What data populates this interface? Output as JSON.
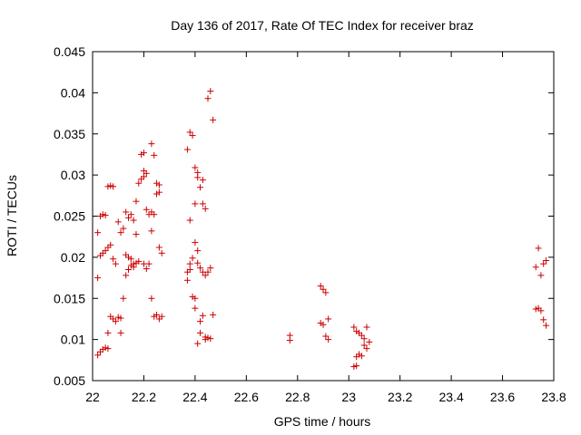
{
  "chart_data": {
    "type": "scatter",
    "title": "Day 136 of 2017, Rate Of TEC Index for receiver braz",
    "xlabel": "GPS time / hours",
    "ylabel": "ROTI / TECUs",
    "xlim": [
      22,
      23.8
    ],
    "ylim": [
      0.005,
      0.045
    ],
    "x_ticks": [
      22,
      22.2,
      22.4,
      22.6,
      22.8,
      23,
      23.2,
      23.4,
      23.6,
      23.8
    ],
    "x_tick_labels": [
      "22",
      "22.2",
      "22.4",
      "22.6",
      "22.8",
      "23",
      "23.2",
      "23.4",
      "23.6",
      "23.8"
    ],
    "y_ticks": [
      0.005,
      0.01,
      0.015,
      0.02,
      0.025,
      0.03,
      0.035,
      0.04,
      0.045
    ],
    "y_tick_labels": [
      "0.005",
      "0.01",
      "0.015",
      "0.02",
      "0.025",
      "0.03",
      "0.035",
      "0.04",
      "0.045"
    ],
    "grid": false,
    "marker": "plus",
    "color": "#cc0000",
    "points": [
      [
        22.02,
        0.0081
      ],
      [
        22.03,
        0.0085
      ],
      [
        22.04,
        0.0088
      ],
      [
        22.05,
        0.009
      ],
      [
        22.06,
        0.0089
      ],
      [
        22.02,
        0.0175
      ],
      [
        22.02,
        0.023
      ],
      [
        22.03,
        0.0202
      ],
      [
        22.04,
        0.0205
      ],
      [
        22.05,
        0.0208
      ],
      [
        22.03,
        0.025
      ],
      [
        22.04,
        0.0252
      ],
      [
        22.05,
        0.0251
      ],
      [
        22.06,
        0.0212
      ],
      [
        22.07,
        0.0215
      ],
      [
        22.06,
        0.0286
      ],
      [
        22.07,
        0.0287
      ],
      [
        22.08,
        0.0286
      ],
      [
        22.08,
        0.0198
      ],
      [
        22.09,
        0.0192
      ],
      [
        22.07,
        0.0128
      ],
      [
        22.08,
        0.0125
      ],
      [
        22.09,
        0.0122
      ],
      [
        22.1,
        0.0127
      ],
      [
        22.11,
        0.0126
      ],
      [
        22.06,
        0.0108
      ],
      [
        22.11,
        0.0108
      ],
      [
        22.1,
        0.0243
      ],
      [
        22.11,
        0.023
      ],
      [
        22.12,
        0.0235
      ],
      [
        22.13,
        0.0255
      ],
      [
        22.14,
        0.0248
      ],
      [
        22.15,
        0.0252
      ],
      [
        22.16,
        0.0245
      ],
      [
        22.17,
        0.0228
      ],
      [
        22.12,
        0.015
      ],
      [
        22.13,
        0.0178
      ],
      [
        22.14,
        0.0185
      ],
      [
        22.15,
        0.019
      ],
      [
        22.16,
        0.0188
      ],
      [
        22.13,
        0.0203
      ],
      [
        22.14,
        0.02
      ],
      [
        22.15,
        0.0198
      ],
      [
        22.17,
        0.0193
      ],
      [
        22.18,
        0.0195
      ],
      [
        22.17,
        0.0268
      ],
      [
        22.18,
        0.029
      ],
      [
        22.19,
        0.0295
      ],
      [
        22.2,
        0.0298
      ],
      [
        22.21,
        0.0302
      ],
      [
        22.19,
        0.0325
      ],
      [
        22.2,
        0.0327
      ],
      [
        22.2,
        0.0305
      ],
      [
        22.21,
        0.0258
      ],
      [
        22.22,
        0.0252
      ],
      [
        22.21,
        0.0186
      ],
      [
        22.22,
        0.0192
      ],
      [
        22.23,
        0.0255
      ],
      [
        22.24,
        0.0252
      ],
      [
        22.23,
        0.0232
      ],
      [
        22.23,
        0.0338
      ],
      [
        22.24,
        0.0324
      ],
      [
        22.25,
        0.029
      ],
      [
        22.26,
        0.0288
      ],
      [
        22.26,
        0.0279
      ],
      [
        22.25,
        0.0277
      ],
      [
        22.26,
        0.0212
      ],
      [
        22.27,
        0.0205
      ],
      [
        22.24,
        0.0128
      ],
      [
        22.25,
        0.013
      ],
      [
        22.26,
        0.0125
      ],
      [
        22.27,
        0.0128
      ],
      [
        22.23,
        0.015
      ],
      [
        22.2,
        0.0192
      ],
      [
        22.16,
        0.0192
      ],
      [
        22.37,
        0.0331
      ],
      [
        22.38,
        0.0352
      ],
      [
        22.39,
        0.0348
      ],
      [
        22.4,
        0.0309
      ],
      [
        22.41,
        0.0303
      ],
      [
        22.41,
        0.0297
      ],
      [
        22.42,
        0.0285
      ],
      [
        22.43,
        0.0294
      ],
      [
        22.4,
        0.0265
      ],
      [
        22.38,
        0.0245
      ],
      [
        22.43,
        0.0265
      ],
      [
        22.44,
        0.0259
      ],
      [
        22.45,
        0.0393
      ],
      [
        22.46,
        0.0402
      ],
      [
        22.47,
        0.0367
      ],
      [
        22.37,
        0.0172
      ],
      [
        22.37,
        0.0182
      ],
      [
        22.38,
        0.0185
      ],
      [
        22.38,
        0.0192
      ],
      [
        22.39,
        0.0199
      ],
      [
        22.4,
        0.0218
      ],
      [
        22.41,
        0.0208
      ],
      [
        22.41,
        0.0193
      ],
      [
        22.42,
        0.0187
      ],
      [
        22.43,
        0.0182
      ],
      [
        22.44,
        0.0178
      ],
      [
        22.45,
        0.0182
      ],
      [
        22.46,
        0.0187
      ],
      [
        22.39,
        0.0152
      ],
      [
        22.4,
        0.015
      ],
      [
        22.4,
        0.0138
      ],
      [
        22.42,
        0.0122
      ],
      [
        22.43,
        0.0129
      ],
      [
        22.41,
        0.0095
      ],
      [
        22.42,
        0.0108
      ],
      [
        22.44,
        0.01
      ],
      [
        22.45,
        0.0102
      ],
      [
        22.46,
        0.0101
      ],
      [
        22.47,
        0.013
      ],
      [
        22.44,
        0.0103
      ],
      [
        22.77,
        0.0105
      ],
      [
        22.77,
        0.0099
      ],
      [
        22.89,
        0.0165
      ],
      [
        22.9,
        0.0161
      ],
      [
        22.91,
        0.0157
      ],
      [
        22.89,
        0.012
      ],
      [
        22.9,
        0.0118
      ],
      [
        22.92,
        0.0125
      ],
      [
        22.91,
        0.0104
      ],
      [
        22.92,
        0.01
      ],
      [
        23.02,
        0.0115
      ],
      [
        23.03,
        0.011
      ],
      [
        23.04,
        0.0108
      ],
      [
        23.05,
        0.0105
      ],
      [
        23.06,
        0.0101
      ],
      [
        23.07,
        0.0115
      ],
      [
        23.08,
        0.0097
      ],
      [
        23.06,
        0.0093
      ],
      [
        23.07,
        0.0089
      ],
      [
        23.03,
        0.0079
      ],
      [
        23.04,
        0.0082
      ],
      [
        23.05,
        0.008
      ],
      [
        23.02,
        0.0067
      ],
      [
        23.03,
        0.0068
      ],
      [
        23.73,
        0.0188
      ],
      [
        23.74,
        0.0211
      ],
      [
        23.75,
        0.0178
      ],
      [
        23.76,
        0.0192
      ],
      [
        23.77,
        0.0196
      ],
      [
        23.73,
        0.0137
      ],
      [
        23.74,
        0.0138
      ],
      [
        23.75,
        0.0135
      ],
      [
        23.76,
        0.0124
      ],
      [
        23.77,
        0.0117
      ]
    ]
  }
}
